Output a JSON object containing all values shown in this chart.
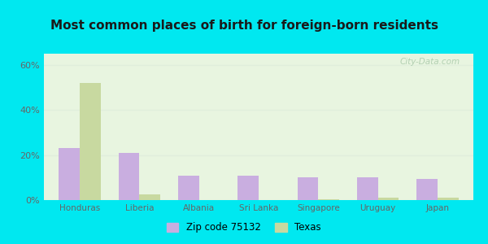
{
  "title": "Most common places of birth for foreign-born residents",
  "categories": [
    "Honduras",
    "Liberia",
    "Albania",
    "Sri Lanka",
    "Singapore",
    "Uruguay",
    "Japan"
  ],
  "zip_values": [
    23,
    21,
    11,
    11,
    10,
    10,
    9.5
  ],
  "texas_values": [
    52,
    2.5,
    0,
    0,
    0.5,
    1.0,
    1.0
  ],
  "zip_color": "#c9aee0",
  "texas_color": "#c8d9a0",
  "background_outer": "#00e8f0",
  "background_inner_top": "#e8f5e0",
  "background_inner_bottom": "#f8fff4",
  "title_fontsize": 11,
  "ylabel_ticks": [
    "0%",
    "20%",
    "40%",
    "60%"
  ],
  "ytick_values": [
    0,
    20,
    40,
    60
  ],
  "ylim": [
    0,
    65
  ],
  "legend_zip_label": "Zip code 75132",
  "legend_texas_label": "Texas",
  "bar_width": 0.35,
  "watermark_color": "#aacaaa",
  "tick_color": "#666666",
  "grid_color": "#e0eedc"
}
